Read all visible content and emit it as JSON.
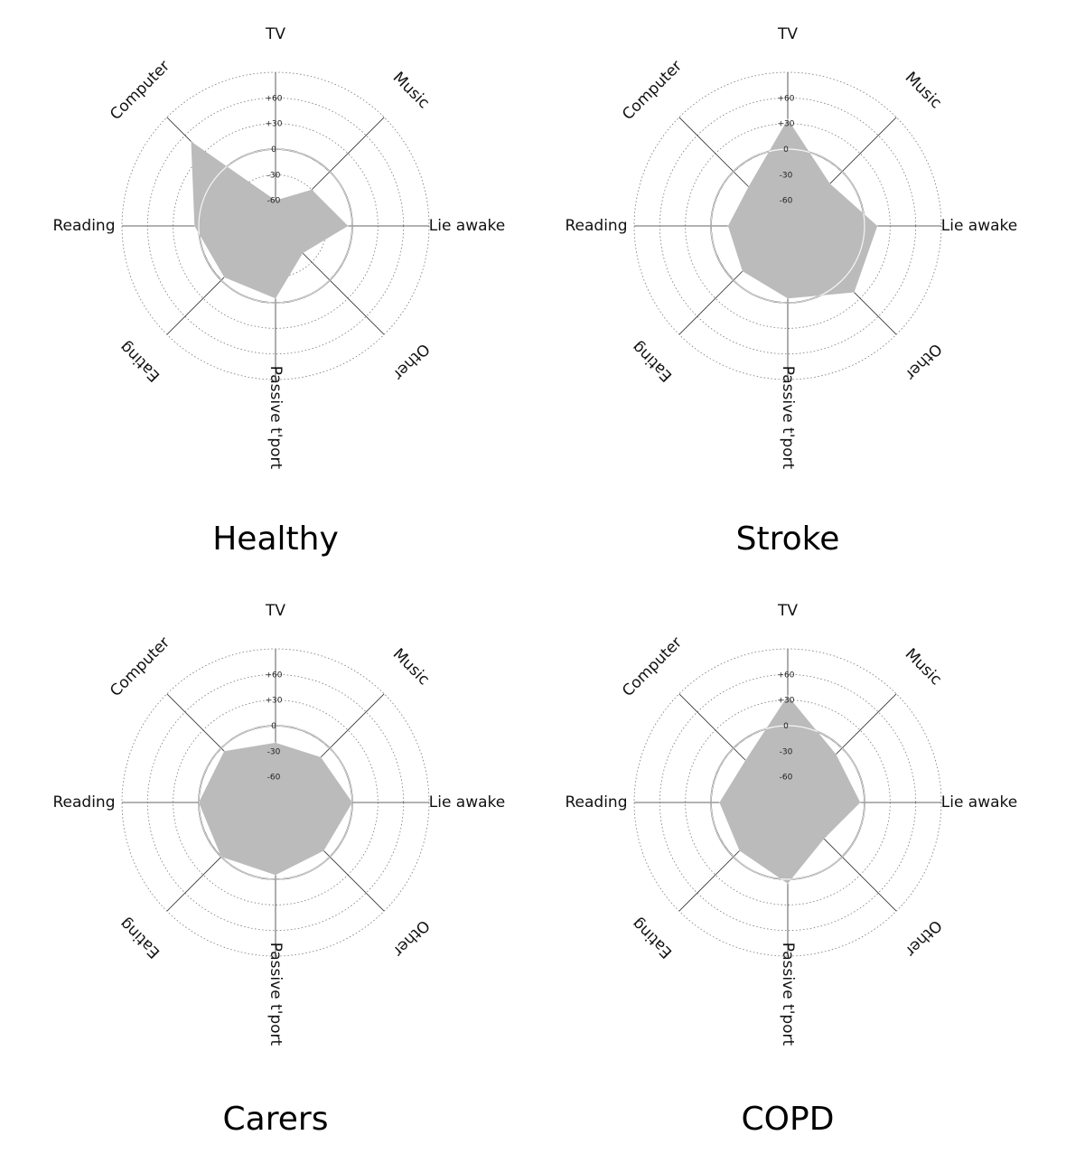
{
  "chart_data": [
    {
      "type": "radar",
      "title": "Healthy",
      "axes": [
        "TV",
        "Music",
        "Lie awake",
        "Other",
        "Passive t'port",
        "Eating",
        "Reading",
        "Computer"
      ],
      "ticks": [
        "+60",
        "+30",
        "0",
        "-30",
        "-60"
      ],
      "rlim": [
        -90,
        90
      ],
      "values": [
        -60,
        -30,
        -5,
        -45,
        -5,
        -5,
        5,
        50
      ],
      "reference_ring": 0,
      "grid": true
    },
    {
      "type": "radar",
      "title": "Stroke",
      "axes": [
        "TV",
        "Music",
        "Lie awake",
        "Other",
        "Passive t'port",
        "Eating",
        "Reading",
        "Computer"
      ],
      "ticks": [
        "+60",
        "+30",
        "0",
        "-30",
        "-60"
      ],
      "rlim": [
        -90,
        90
      ],
      "values": [
        35,
        -20,
        15,
        20,
        -5,
        -15,
        -20,
        -25
      ],
      "reference_ring": 0,
      "grid": true
    },
    {
      "type": "radar",
      "title": "Carers",
      "axes": [
        "TV",
        "Music",
        "Lie awake",
        "Other",
        "Passive t'port",
        "Eating",
        "Reading",
        "Computer"
      ],
      "ticks": [
        "+60",
        "+30",
        "0",
        "-30",
        "-60"
      ],
      "rlim": [
        -90,
        90
      ],
      "values": [
        -20,
        -15,
        0,
        -10,
        -5,
        0,
        0,
        -5
      ],
      "reference_ring": 0,
      "grid": true
    },
    {
      "type": "radar",
      "title": "COPD",
      "axes": [
        "TV",
        "Music",
        "Lie awake",
        "Other",
        "Passive t'port",
        "Eating",
        "Reading",
        "Computer"
      ],
      "ticks": [
        "+60",
        "+30",
        "0",
        "-30",
        "-60"
      ],
      "rlim": [
        -90,
        90
      ],
      "values": [
        35,
        -10,
        -5,
        -30,
        5,
        -10,
        -10,
        -20
      ],
      "reference_ring": 0,
      "grid": true
    }
  ]
}
